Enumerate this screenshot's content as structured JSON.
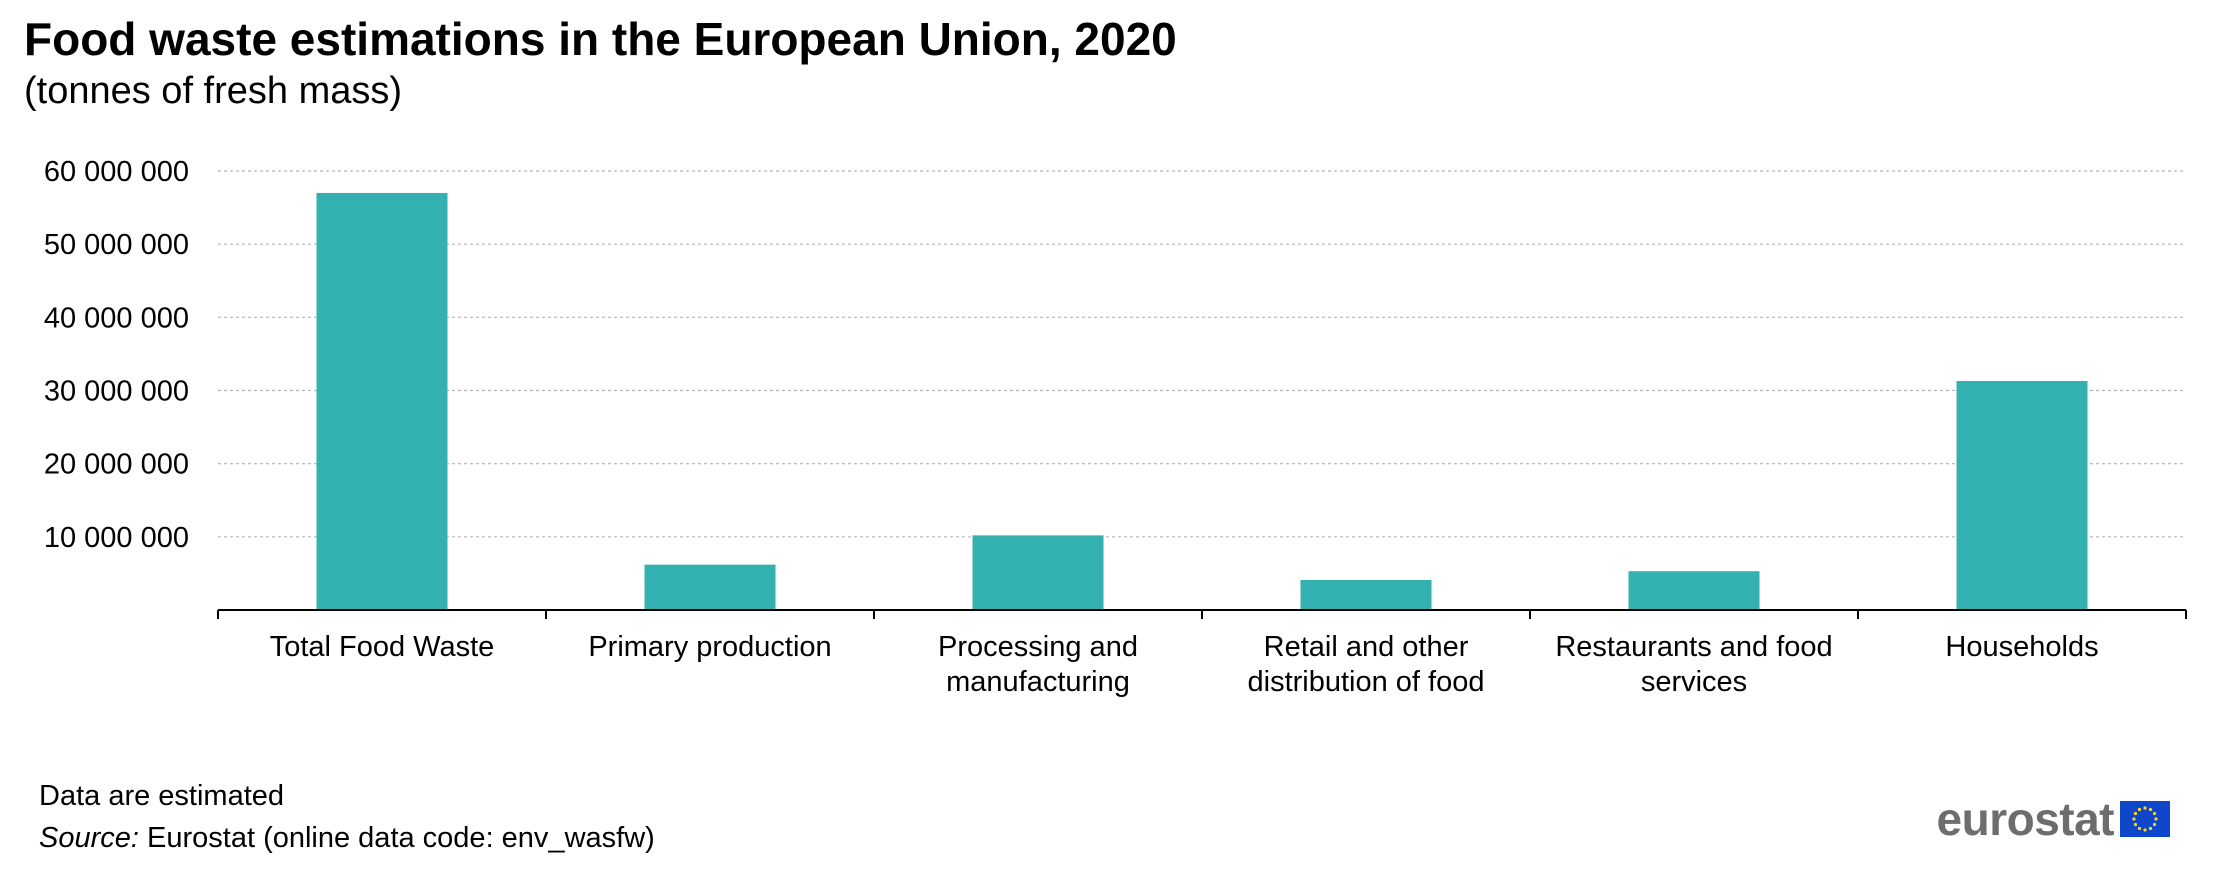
{
  "chart_data": {
    "type": "bar",
    "title": "Food waste estimations in the European Union, 2020",
    "subtitle": "(tonnes of fresh mass)",
    "categories": [
      [
        "Total Food Waste"
      ],
      [
        "Primary production"
      ],
      [
        "Processing and",
        "manufacturing"
      ],
      [
        "Retail and other",
        "distribution of food"
      ],
      [
        "Restaurants and food",
        "services"
      ],
      [
        "Households"
      ]
    ],
    "values": [
      57000000,
      6200000,
      10200000,
      4100000,
      5300000,
      31300000
    ],
    "ylim": [
      0,
      60000000
    ],
    "yticks": [
      10000000,
      20000000,
      30000000,
      40000000,
      50000000,
      60000000
    ],
    "ytick_labels": [
      "10 000 000",
      "20 000 000",
      "30 000 000",
      "40 000 000",
      "50 000 000",
      "60 000 000"
    ],
    "grid": true,
    "bar_color": "#33b1b0"
  },
  "footer": {
    "note": "Data are estimated",
    "source_label": "Source:",
    "source_text": " Eurostat (online data code: env_wasfw)"
  },
  "logo": {
    "text": "eurostat",
    "flag_color": "#0e47cb",
    "star_color": "#ffd617"
  }
}
